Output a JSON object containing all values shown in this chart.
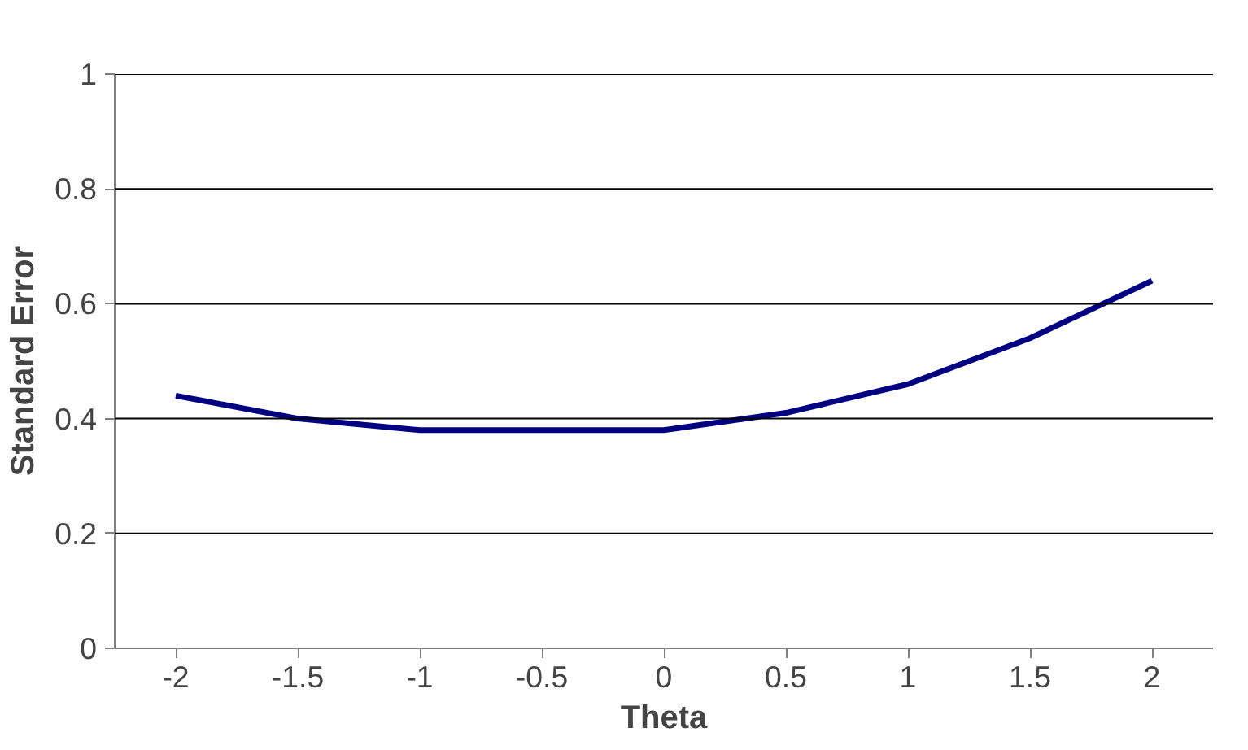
{
  "chart_data": {
    "type": "line",
    "xlabel": "Theta",
    "ylabel": "Standard Error",
    "categories": [
      "-2",
      "-1.5",
      "-1",
      "-0.5",
      "0",
      "0.5",
      "1",
      "1.5",
      "2"
    ],
    "series": [
      {
        "color": "#000080",
        "values": [
          0.44,
          0.4,
          0.38,
          0.38,
          0.38,
          0.41,
          0.46,
          0.54,
          0.64
        ]
      }
    ],
    "ylim": [
      0,
      1
    ],
    "yticks": [
      0,
      0.2,
      0.4,
      0.6,
      0.8,
      1
    ],
    "grid": "y",
    "marker": "none",
    "line_style": "solid"
  }
}
